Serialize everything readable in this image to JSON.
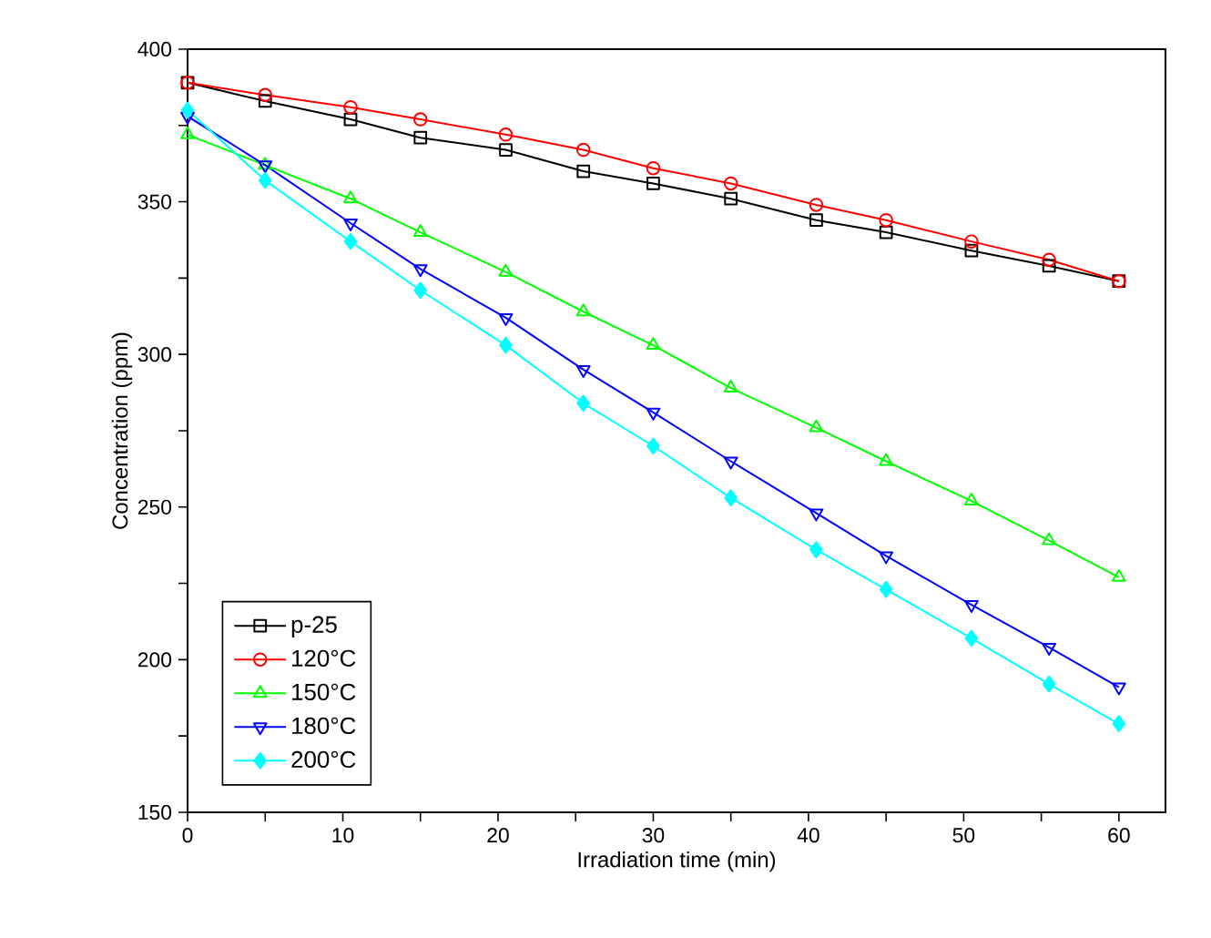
{
  "chart_data": {
    "type": "line",
    "xlabel": "Irradiation time (min)",
    "ylabel": "Concentration (ppm)",
    "x": [
      0,
      5,
      10.5,
      15,
      20.5,
      25.5,
      30,
      35,
      40.5,
      45,
      50.5,
      55.5,
      60
    ],
    "xlim": [
      0,
      63
    ],
    "ylim": [
      150,
      400
    ],
    "xticks": [
      0,
      {
        "value": 5,
        "label": null
      },
      10,
      {
        "value": 15,
        "label": null
      },
      20,
      {
        "value": 25,
        "label": null
      },
      30,
      {
        "value": 35,
        "label": null
      },
      40,
      {
        "value": 45,
        "label": null
      },
      50,
      {
        "value": 55,
        "label": null
      },
      60
    ],
    "yticks": [
      150,
      {
        "value": 175,
        "label": null
      },
      200,
      {
        "value": 225,
        "label": null
      },
      250,
      {
        "value": 275,
        "label": null
      },
      300,
      {
        "value": 325,
        "label": null
      },
      350,
      {
        "value": 375,
        "label": null
      },
      400
    ],
    "legend": "bottom left",
    "grid": false,
    "line_style": "solid",
    "series": [
      {
        "name": "p-25",
        "color": "#000000",
        "marker": "square",
        "values": [
          389,
          383,
          377,
          371,
          367,
          360,
          356,
          351,
          344,
          340,
          334,
          329,
          324
        ]
      },
      {
        "name": "120°C",
        "color": "#ff0000",
        "marker": "circle",
        "values": [
          389,
          385,
          381,
          377,
          372,
          367,
          361,
          356,
          349,
          344,
          337,
          331,
          324
        ]
      },
      {
        "name": "150°C",
        "color": "#00ff00",
        "marker": "triangle",
        "values": [
          372,
          362,
          351,
          340,
          327,
          314,
          303,
          289,
          276,
          265,
          252,
          239,
          227
        ]
      },
      {
        "name": "180°C",
        "color": "#0000ff",
        "marker": "triangle_down",
        "values": [
          378,
          362,
          343,
          328,
          312,
          295,
          281,
          265,
          248,
          234,
          218,
          204,
          191
        ]
      },
      {
        "name": "200°C",
        "color": "#00ffff",
        "marker": "diamond",
        "values": [
          380,
          357,
          337,
          321,
          303,
          284,
          270,
          253,
          236,
          223,
          207,
          192,
          179
        ]
      }
    ]
  }
}
